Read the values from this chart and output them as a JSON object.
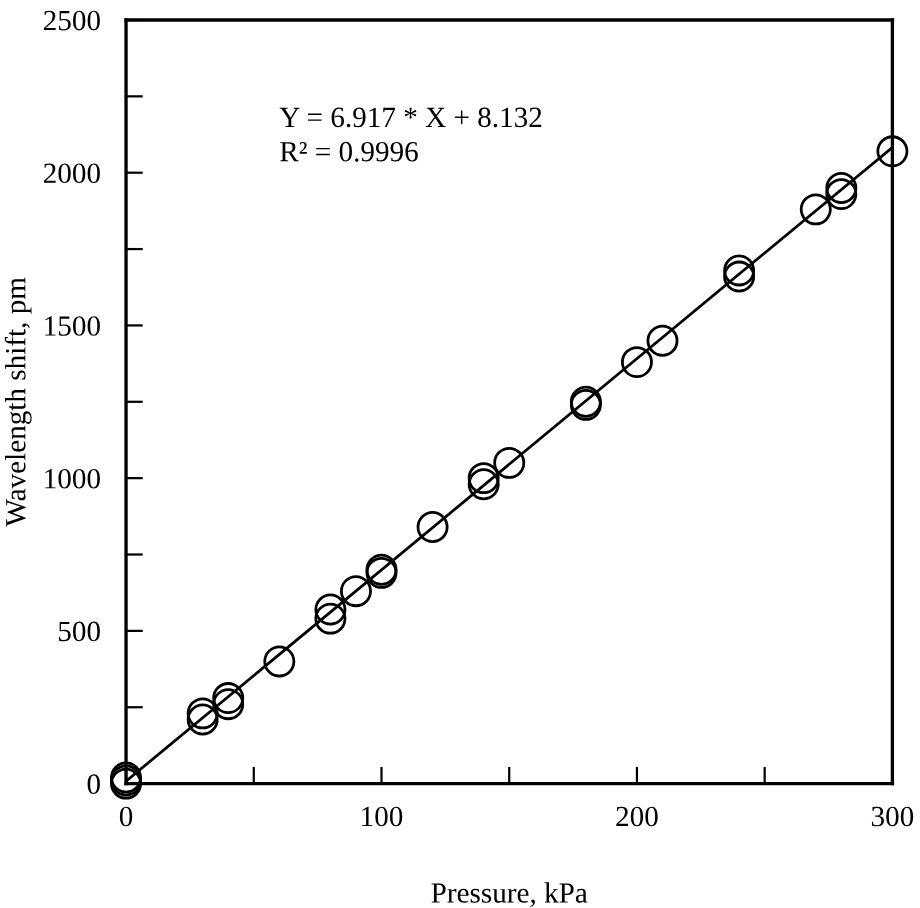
{
  "chart_data": {
    "type": "scatter",
    "xlabel": "Pressure, kPa",
    "ylabel": "Wavelength shift, pm",
    "annotations": [
      "Y = 6.917 * X + 8.132",
      "R² = 0.9996"
    ],
    "series": [
      {
        "color": "#000000",
        "marker": "circle",
        "x": [
          0,
          0,
          0,
          30,
          30,
          40,
          40,
          60,
          80,
          80,
          90,
          100,
          100,
          120,
          140,
          140,
          150,
          180,
          180,
          200,
          210,
          240,
          240,
          270,
          280,
          280,
          300
        ],
        "values": [
          0,
          10,
          20,
          210,
          230,
          260,
          280,
          400,
          540,
          570,
          630,
          690,
          700,
          840,
          980,
          1000,
          1050,
          1240,
          1250,
          1380,
          1450,
          1660,
          1680,
          1880,
          1930,
          1950,
          2070
        ]
      },
      {
        "type": "line",
        "color": "#000000",
        "marker": "none",
        "line_style": "solid",
        "x": [
          0,
          300
        ],
        "values": [
          8,
          2083
        ]
      }
    ],
    "xlim": [
      0,
      300
    ],
    "ylim": [
      0,
      2500
    ],
    "xticks": [
      0,
      {
        "value": 50,
        "label": null
      },
      100,
      {
        "value": 150,
        "label": null
      },
      200,
      {
        "value": 250,
        "label": null
      },
      300
    ],
    "yticks": [
      0,
      {
        "value": 250,
        "label": null
      },
      500,
      {
        "value": 750,
        "label": null
      },
      1000,
      {
        "value": 1250,
        "label": null
      },
      1500,
      {
        "value": 1750,
        "label": null
      },
      2000,
      {
        "value": 2250,
        "label": null
      },
      2500
    ],
    "grid": false,
    "legend": false
  }
}
